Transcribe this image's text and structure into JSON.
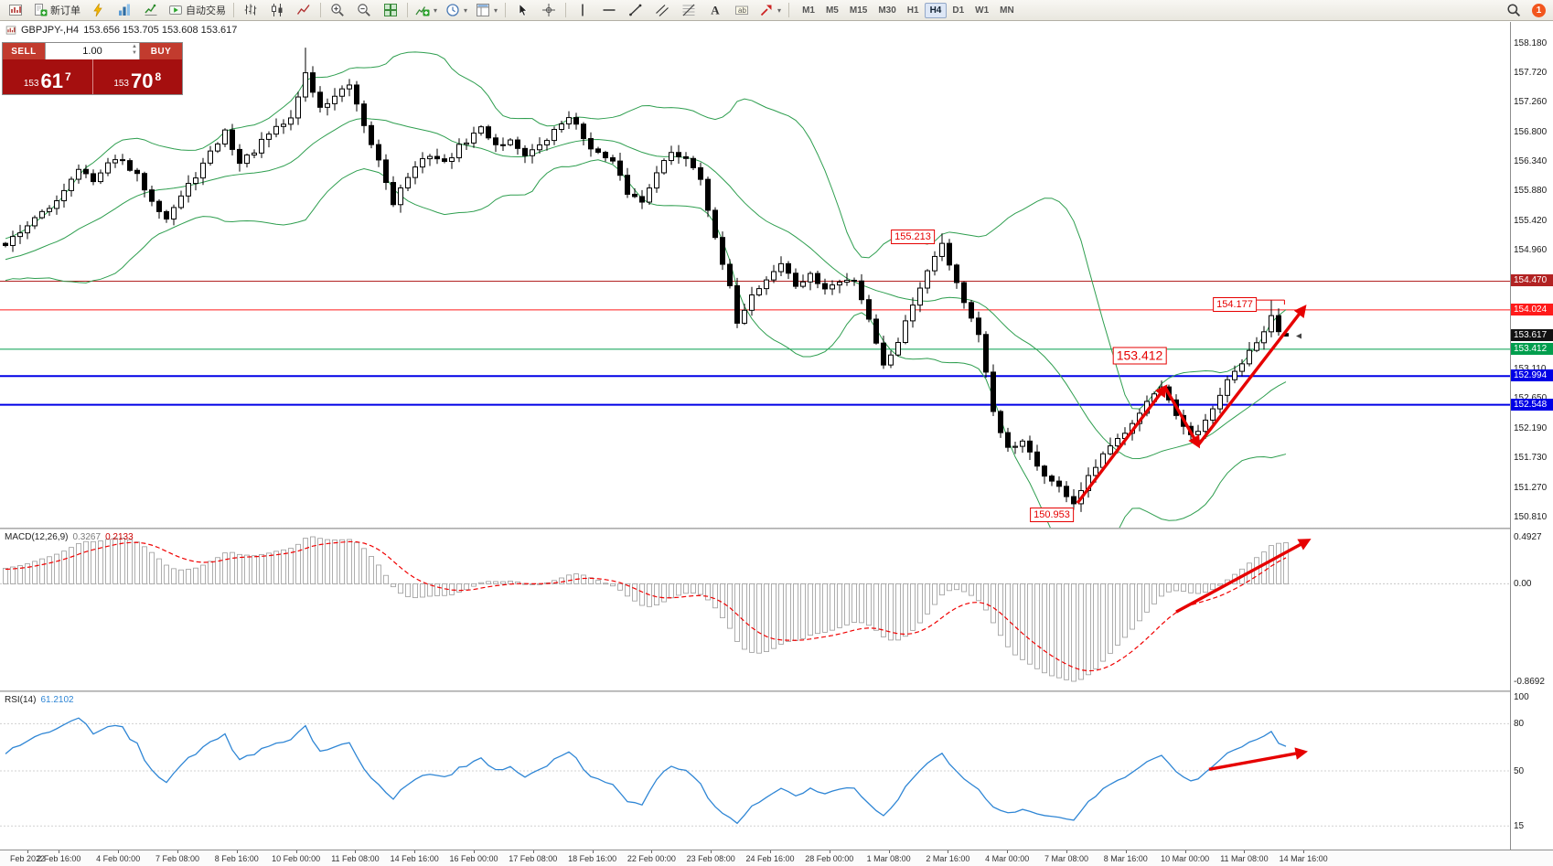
{
  "toolbar": {
    "items": [
      {
        "icon": "chart-window"
      },
      {
        "icon": "new-order",
        "label": "新订单"
      },
      {
        "icon": "script"
      },
      {
        "icon": "charts"
      },
      {
        "icon": "market-watch"
      },
      {
        "icon": "autotrading",
        "label": "自动交易"
      },
      {
        "sep": true
      },
      {
        "icon": "bar-chart"
      },
      {
        "icon": "candle-chart"
      },
      {
        "icon": "line-chart"
      },
      {
        "sep": true
      },
      {
        "icon": "zoom-in"
      },
      {
        "icon": "zoom-out"
      },
      {
        "icon": "tile-windows"
      },
      {
        "sep": true
      },
      {
        "icon": "indicators",
        "dropdown": true
      },
      {
        "icon": "periods",
        "dropdown": true
      },
      {
        "icon": "templates",
        "dropdown": true
      },
      {
        "sep": true
      },
      {
        "icon": "cursor"
      },
      {
        "icon": "crosshair"
      },
      {
        "sep": true
      },
      {
        "icon": "vertical-line"
      },
      {
        "icon": "horizontal-line"
      },
      {
        "icon": "trendline"
      },
      {
        "icon": "channel"
      },
      {
        "icon": "fibonacci"
      },
      {
        "icon": "text"
      },
      {
        "icon": "text-label"
      },
      {
        "icon": "arrows",
        "dropdown": true
      },
      {
        "sep": true
      }
    ],
    "timeframes": [
      "M1",
      "M5",
      "M15",
      "M30",
      "H1",
      "H4",
      "D1",
      "W1",
      "MN"
    ],
    "active_timeframe": "H4",
    "badge_count": "1"
  },
  "chart_header": {
    "symbol_period": "GBPJPY-,H4",
    "quote": "153.656 153.705 153.608 153.617"
  },
  "one_click": {
    "sell_label": "SELL",
    "buy_label": "BUY",
    "lot": "1.00",
    "sell_price": {
      "small": "153",
      "big": "61",
      "sup": "7"
    },
    "buy_price": {
      "small": "153",
      "big": "70",
      "sup": "8"
    }
  },
  "chart_data": {
    "type": "candlestick",
    "symbol": "GBPJPY-",
    "timeframe": "H4",
    "bars_visible": 176,
    "last_ohlc": {
      "open": 153.656,
      "high": 153.705,
      "low": 153.608,
      "close": 153.617
    },
    "price_axis": {
      "ticks": [
        158.18,
        157.72,
        157.26,
        156.8,
        156.34,
        155.88,
        155.42,
        154.96,
        153.11,
        152.65,
        152.19,
        151.73,
        151.27,
        150.81
      ]
    },
    "time_axis": [
      {
        "b": 3,
        "t": "Feb 2022"
      },
      {
        "b": 7.3,
        "t": "2 Feb 16:00"
      },
      {
        "b": 15.4,
        "t": "4 Feb 00:00"
      },
      {
        "b": 23.5,
        "t": "7 Feb 08:00"
      },
      {
        "b": 31.6,
        "t": "8 Feb 16:00"
      },
      {
        "b": 39.7,
        "t": "10 Feb 00:00"
      },
      {
        "b": 47.8,
        "t": "11 Feb 08:00"
      },
      {
        "b": 55.9,
        "t": "14 Feb 16:00"
      },
      {
        "b": 64,
        "t": "16 Feb 00:00"
      },
      {
        "b": 72.1,
        "t": "17 Feb 08:00"
      },
      {
        "b": 80.2,
        "t": "18 Feb 16:00"
      },
      {
        "b": 88.3,
        "t": "22 Feb 00:00"
      },
      {
        "b": 96.4,
        "t": "23 Feb 08:00"
      },
      {
        "b": 104.5,
        "t": "24 Feb 16:00"
      },
      {
        "b": 112.6,
        "t": "28 Feb 00:00"
      },
      {
        "b": 120.7,
        "t": "1 Mar 08:00"
      },
      {
        "b": 128.8,
        "t": "2 Mar 16:00"
      },
      {
        "b": 136.9,
        "t": "4 Mar 00:00"
      },
      {
        "b": 145,
        "t": "7 Mar 08:00"
      },
      {
        "b": 153.1,
        "t": "8 Mar 16:00"
      },
      {
        "b": 161.2,
        "t": "10 Mar 00:00"
      },
      {
        "b": 169.3,
        "t": "11 Mar 08:00"
      },
      {
        "b": 177.4,
        "t": "14 Mar 16:00"
      }
    ],
    "close_path": [
      [
        0,
        155.05
      ],
      [
        3,
        155.35
      ],
      [
        6,
        155.6
      ],
      [
        8,
        155.9
      ],
      [
        10,
        156.25
      ],
      [
        12,
        156.0
      ],
      [
        15,
        156.4
      ],
      [
        18,
        156.1
      ],
      [
        20,
        155.75
      ],
      [
        22,
        155.45
      ],
      [
        25,
        155.95
      ],
      [
        28,
        156.45
      ],
      [
        30,
        156.8
      ],
      [
        32,
        156.3
      ],
      [
        34,
        156.5
      ],
      [
        36,
        156.75
      ],
      [
        39,
        157.0
      ],
      [
        41,
        157.7
      ],
      [
        43,
        157.15
      ],
      [
        45,
        157.35
      ],
      [
        47,
        157.5
      ],
      [
        49,
        156.85
      ],
      [
        51,
        156.35
      ],
      [
        53,
        155.7
      ],
      [
        55,
        156.1
      ],
      [
        58,
        156.45
      ],
      [
        60,
        156.3
      ],
      [
        62,
        156.55
      ],
      [
        65,
        156.85
      ],
      [
        67,
        156.6
      ],
      [
        69,
        156.65
      ],
      [
        71,
        156.45
      ],
      [
        73,
        156.55
      ],
      [
        75,
        156.8
      ],
      [
        77,
        157.05
      ],
      [
        79,
        156.7
      ],
      [
        81,
        156.45
      ],
      [
        83,
        156.3
      ],
      [
        85,
        155.85
      ],
      [
        87,
        155.7
      ],
      [
        89,
        156.2
      ],
      [
        91,
        156.45
      ],
      [
        93,
        156.4
      ],
      [
        95,
        156.1
      ],
      [
        97,
        155.1
      ],
      [
        99,
        154.35
      ],
      [
        100,
        153.85
      ],
      [
        102,
        154.25
      ],
      [
        104,
        154.5
      ],
      [
        106,
        154.75
      ],
      [
        108,
        154.4
      ],
      [
        110,
        154.55
      ],
      [
        112,
        154.35
      ],
      [
        114,
        154.45
      ],
      [
        116,
        154.5
      ],
      [
        118,
        153.9
      ],
      [
        120,
        153.15
      ],
      [
        122,
        153.55
      ],
      [
        125,
        154.4
      ],
      [
        127,
        154.9
      ],
      [
        128,
        155.05
      ],
      [
        129,
        154.75
      ],
      [
        131,
        154.15
      ],
      [
        133,
        153.6
      ],
      [
        135,
        152.45
      ],
      [
        137,
        151.85
      ],
      [
        139,
        151.95
      ],
      [
        141,
        151.6
      ],
      [
        143,
        151.35
      ],
      [
        145,
        151.15
      ],
      [
        146,
        151.02
      ],
      [
        148,
        151.4
      ],
      [
        150,
        151.75
      ],
      [
        152,
        152.0
      ],
      [
        154,
        152.3
      ],
      [
        156,
        152.6
      ],
      [
        158,
        152.8
      ],
      [
        160,
        152.35
      ],
      [
        162,
        152.05
      ],
      [
        163,
        152.1
      ],
      [
        165,
        152.5
      ],
      [
        167,
        152.9
      ],
      [
        169,
        153.2
      ],
      [
        171,
        153.5
      ],
      [
        173,
        153.9
      ],
      [
        174,
        153.72
      ],
      [
        175,
        153.617
      ]
    ],
    "wick_overrides": {
      "41": {
        "h": 158.1
      },
      "128": {
        "h": 155.213
      },
      "146": {
        "l": 150.953
      },
      "173": {
        "h": 154.177
      }
    },
    "horizontal_lines": [
      {
        "price": 154.47,
        "color": "#b22222",
        "width": 1,
        "tag": "154.470"
      },
      {
        "price": 154.024,
        "color": "#ff1a1a",
        "width": 1,
        "tag": "154.024"
      },
      {
        "price": 153.412,
        "color": "#009e4d",
        "width": 1,
        "tag": "153.412"
      },
      {
        "price": 152.994,
        "color": "#0000e6",
        "width": 2,
        "tag": "152.994"
      },
      {
        "price": 152.548,
        "color": "#0000e6",
        "width": 2,
        "tag": "152.548"
      }
    ],
    "current_price": {
      "value": 153.617,
      "tag": "153.617"
    },
    "bollinger": {
      "period": 20,
      "deviation": 2,
      "color": "#2e9e4f"
    },
    "macd": {
      "label": "MACD(12,26,9)",
      "main_value": "0.3267",
      "signal_value": "0.2133",
      "axis_max": "0.4927",
      "axis_zero": "0.00",
      "axis_min": "-0.8692",
      "fast": 12,
      "slow": 26,
      "signal": 9
    },
    "rsi": {
      "label": "RSI(14)",
      "value": "61.2102",
      "period": 14,
      "levels": [
        100,
        80,
        50,
        15
      ]
    },
    "annotations": {
      "price_labels": [
        {
          "text": "155.213",
          "bar": 124,
          "price": 155.16
        },
        {
          "text": "154.177",
          "bar": 168,
          "price": 154.1
        },
        {
          "text": "153.412",
          "bar": 155,
          "price": 153.31,
          "large": true
        },
        {
          "text": "150.953",
          "bar": 143,
          "price": 150.84
        }
      ],
      "label_connector": {
        "price": 154.177,
        "from_bar": 169.5,
        "to_bar": 174.8
      },
      "main_arrows": [
        [
          [
            146.5,
            151.02
          ],
          [
            158.5,
            152.82
          ]
        ],
        [
          [
            158.5,
            152.82
          ],
          [
            163,
            151.92
          ]
        ],
        [
          [
            163,
            151.92
          ],
          [
            177.5,
            154.06
          ]
        ]
      ],
      "macd_arrow": [
        [
          160,
          -0.24
        ],
        [
          178,
          0.37
        ]
      ],
      "rsi_arrow": [
        [
          164.5,
          51
        ],
        [
          177.5,
          62
        ]
      ]
    }
  }
}
